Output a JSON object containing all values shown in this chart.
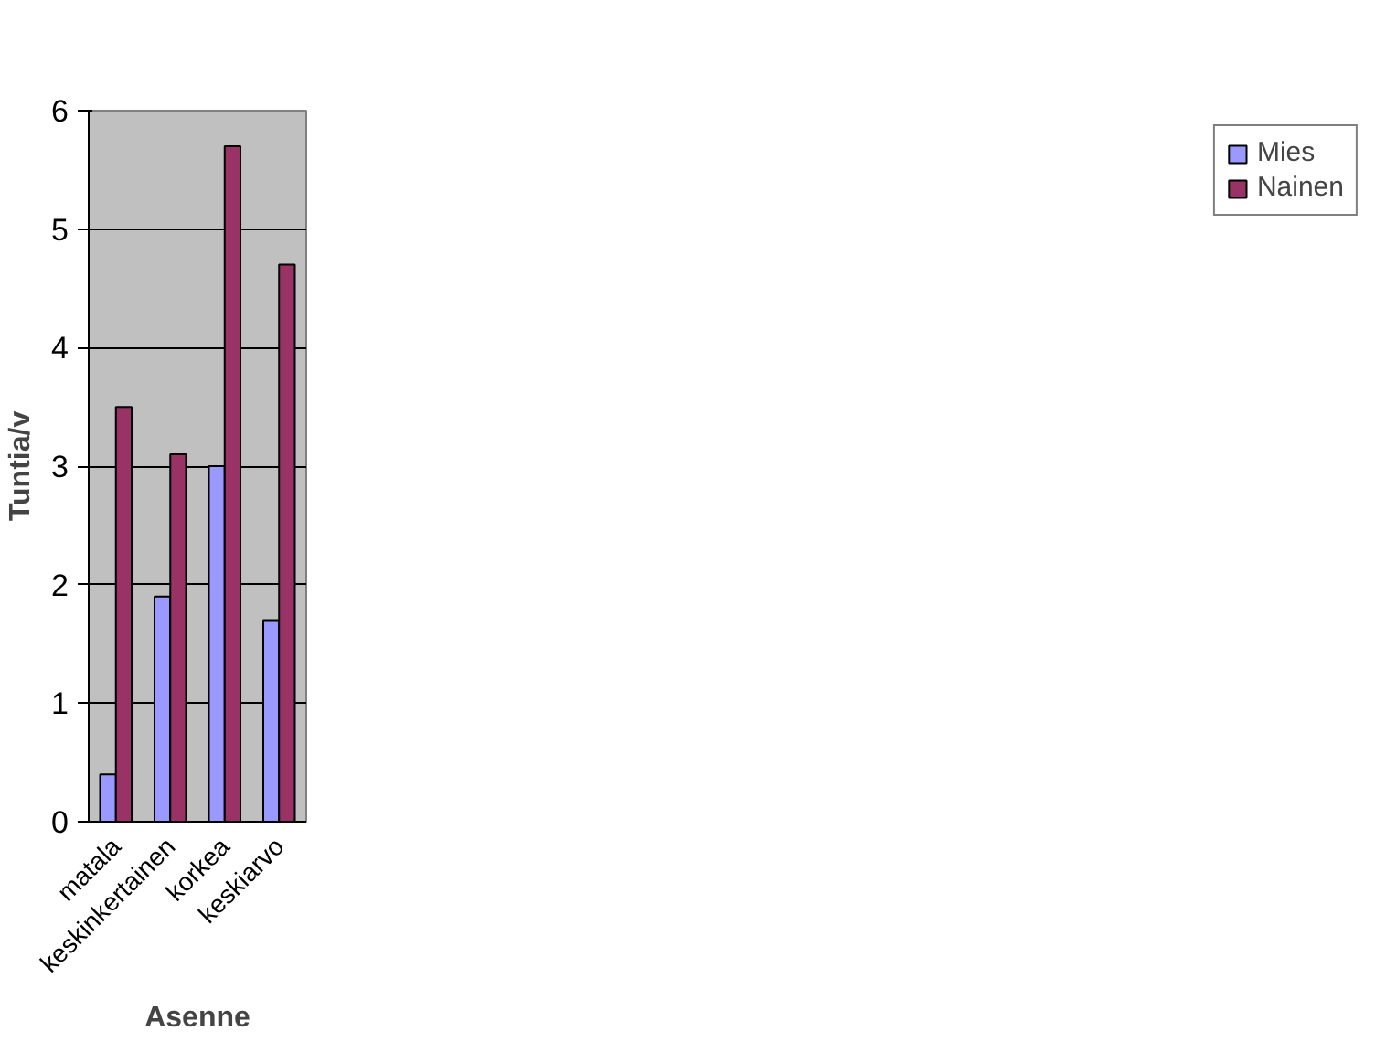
{
  "chart_data": {
    "type": "bar",
    "xlabel": "Asenne",
    "ylabel": "Tuntia/v",
    "categories": [
      "matala",
      "keskinkertainen",
      "korkea",
      "keskiarvo"
    ],
    "series": [
      {
        "name": "Mies",
        "color": "#9999ff",
        "values": [
          0.4,
          1.9,
          3.0,
          1.7
        ]
      },
      {
        "name": "Nainen",
        "color": "#993366",
        "values": [
          3.5,
          3.1,
          5.7,
          4.7
        ]
      }
    ],
    "ylim": [
      0,
      6
    ],
    "yticks": [
      0,
      1,
      2,
      3,
      4,
      5,
      6
    ],
    "grid": "y",
    "legend": "right"
  }
}
